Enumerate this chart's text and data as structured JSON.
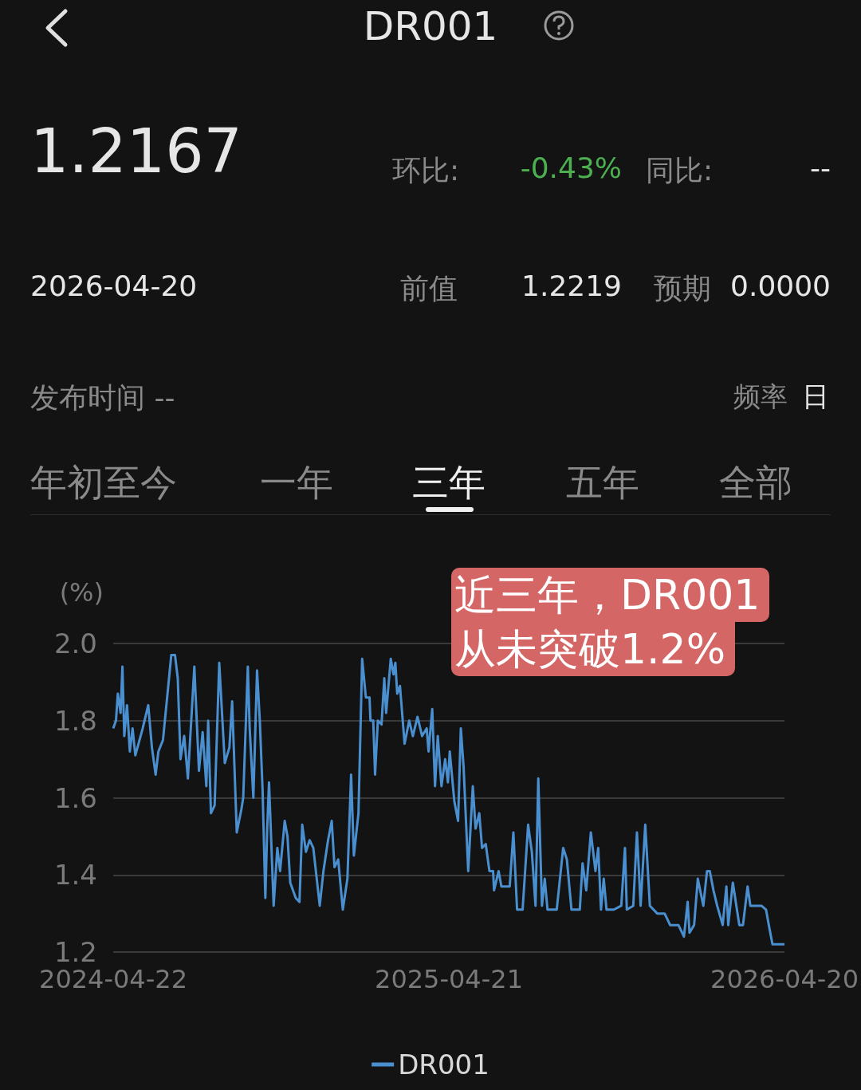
{
  "chart_data": {
    "type": "line",
    "title": "DR001",
    "ylabel": "(%)",
    "annotations": [
      "1.2167",
      "环比:",
      "-0.43%",
      "同比:",
      "--",
      "2026-04-20",
      "前值",
      "1.2219",
      "预期",
      "0.0000",
      "发布时间 --",
      "频率",
      "日",
      "年初至今",
      "一年",
      "三年",
      "五年",
      "全部",
      "近三年，DR001\n从未突破1.2%"
    ],
    "xlim": [
      "2024-04-22",
      "2026-04-20"
    ],
    "xticks": [
      "2024-04-22",
      "2025-04-21",
      "2026-04-20"
    ],
    "ylim": [
      1.2,
      2.0
    ],
    "yticks": [
      {
        "value": 1.2,
        "label": "1.2"
      },
      {
        "value": 1.4,
        "label": "1.4"
      },
      {
        "value": 1.6,
        "label": "1.6"
      },
      {
        "value": 1.8,
        "label": "1.8"
      },
      {
        "value": 2.0,
        "label": "2.0"
      }
    ],
    "grid": "y",
    "legend": "bottom",
    "marker": "none",
    "series": [
      {
        "name": "DR001",
        "color": "#4a8fd0",
        "x": [
          "2024-04-22",
          "2024-04-25",
          "2024-04-27",
          "2024-04-30",
          "2024-05-02",
          "2024-05-04",
          "2024-05-07",
          "2024-05-10",
          "2024-05-13",
          "2024-05-16",
          "2024-05-24",
          "2024-05-30",
          "2024-06-03",
          "2024-06-07",
          "2024-06-10",
          "2024-06-15",
          "2024-06-24",
          "2024-06-28",
          "2024-07-01",
          "2024-07-04",
          "2024-07-08",
          "2024-07-12",
          "2024-07-19",
          "2024-07-24",
          "2024-07-28",
          "2024-08-01",
          "2024-08-03",
          "2024-08-06",
          "2024-08-10",
          "2024-08-15",
          "2024-08-21",
          "2024-08-26",
          "2024-08-29",
          "2024-09-03",
          "2024-09-08",
          "2024-09-10",
          "2024-09-15",
          "2024-09-17",
          "2024-09-21",
          "2024-09-25",
          "2024-09-28",
          "2024-10-01",
          "2024-10-04",
          "2024-10-06",
          "2024-10-08",
          "2024-10-13",
          "2024-10-17",
          "2024-10-20",
          "2024-10-25",
          "2024-10-28",
          "2024-10-31",
          "2024-11-06",
          "2024-11-10",
          "2024-11-13",
          "2024-11-17",
          "2024-11-21",
          "2024-11-25",
          "2024-12-02",
          "2024-12-06",
          "2024-12-11",
          "2024-12-15",
          "2024-12-18",
          "2024-12-22",
          "2024-12-27",
          "2025-01-01",
          "2025-01-05",
          "2025-01-08",
          "2025-01-13",
          "2025-01-17",
          "2025-01-21",
          "2025-01-25",
          "2025-01-26",
          "2025-01-29",
          "2025-01-31",
          "2025-02-03",
          "2025-02-07",
          "2025-02-10",
          "2025-02-12",
          "2025-02-17",
          "2025-02-20",
          "2025-02-22",
          "2025-02-24",
          "2025-02-27",
          "2025-03-04",
          "2025-03-09",
          "2025-03-13",
          "2025-03-18",
          "2025-03-23",
          "2025-03-28",
          "2025-03-30",
          "2025-04-03",
          "2025-04-06",
          "2025-04-09",
          "2025-04-13",
          "2025-04-17",
          "2025-04-20",
          "2025-04-22",
          "2025-04-27",
          "2025-05-01",
          "2025-05-04",
          "2025-05-07",
          "2025-05-12",
          "2025-05-17",
          "2025-05-20",
          "2025-05-24",
          "2025-05-27",
          "2025-05-31",
          "2025-06-04",
          "2025-06-08",
          "2025-06-09",
          "2025-06-14",
          "2025-06-17",
          "2025-06-26",
          "2025-06-30",
          "2025-07-04",
          "2025-07-10",
          "2025-07-16",
          "2025-07-20",
          "2025-07-24",
          "2025-07-27",
          "2025-07-31",
          "2025-08-03",
          "2025-08-06",
          "2025-08-16",
          "2025-08-23",
          "2025-08-27",
          "2025-09-01",
          "2025-09-06",
          "2025-09-10",
          "2025-09-13",
          "2025-09-17",
          "2025-09-22",
          "2025-09-27",
          "2025-09-30",
          "2025-10-03",
          "2025-10-06",
          "2025-10-09",
          "2025-10-17",
          "2025-10-25",
          "2025-10-29",
          "2025-10-31",
          "2025-11-07",
          "2025-11-11",
          "2025-11-15",
          "2025-11-20",
          "2025-11-25",
          "2025-12-03",
          "2025-12-11",
          "2025-12-17",
          "2025-12-26",
          "2026-01-01",
          "2026-01-05",
          "2026-01-07",
          "2026-01-12",
          "2026-01-16",
          "2026-01-22",
          "2026-01-26",
          "2026-01-29",
          "2026-02-02",
          "2026-02-06",
          "2026-02-12",
          "2026-02-16",
          "2026-02-18",
          "2026-02-23",
          "2026-03-02",
          "2026-03-06",
          "2026-03-11",
          "2026-03-14",
          "2026-03-26",
          "2026-03-31",
          "2026-04-03",
          "2026-04-07",
          "2026-04-12",
          "2026-04-20"
        ],
        "values": [
          1.78,
          1.8,
          1.87,
          1.82,
          1.94,
          1.76,
          1.84,
          1.72,
          1.78,
          1.71,
          1.78,
          1.84,
          1.73,
          1.66,
          1.72,
          1.75,
          1.97,
          1.97,
          1.91,
          1.7,
          1.76,
          1.65,
          1.94,
          1.67,
          1.77,
          1.63,
          1.8,
          1.56,
          1.58,
          1.95,
          1.69,
          1.73,
          1.85,
          1.51,
          1.57,
          1.6,
          1.94,
          1.78,
          1.6,
          1.93,
          1.8,
          1.62,
          1.34,
          1.52,
          1.64,
          1.32,
          1.47,
          1.41,
          1.54,
          1.5,
          1.38,
          1.34,
          1.33,
          1.53,
          1.46,
          1.49,
          1.47,
          1.32,
          1.41,
          1.49,
          1.54,
          1.42,
          1.44,
          1.31,
          1.39,
          1.66,
          1.45,
          1.56,
          1.96,
          1.86,
          1.86,
          1.8,
          1.8,
          1.66,
          1.8,
          1.79,
          1.91,
          1.82,
          1.96,
          1.92,
          1.95,
          1.87,
          1.89,
          1.74,
          1.8,
          1.76,
          1.81,
          1.76,
          1.78,
          1.72,
          1.83,
          1.63,
          1.76,
          1.63,
          1.7,
          1.64,
          1.72,
          1.59,
          1.54,
          1.78,
          1.68,
          1.41,
          1.63,
          1.52,
          1.56,
          1.47,
          1.48,
          1.41,
          1.41,
          1.36,
          1.41,
          1.37,
          1.37,
          1.51,
          1.31,
          1.31,
          1.53,
          1.46,
          1.32,
          1.65,
          1.32,
          1.39,
          1.31,
          1.31,
          1.47,
          1.44,
          1.31,
          1.31,
          1.31,
          1.43,
          1.36,
          1.51,
          1.41,
          1.47,
          1.31,
          1.39,
          1.31,
          1.31,
          1.32,
          1.47,
          1.31,
          1.32,
          1.51,
          1.32,
          1.53,
          1.32,
          1.3,
          1.3,
          1.27,
          1.27,
          1.24,
          1.33,
          1.25,
          1.27,
          1.39,
          1.32,
          1.41,
          1.41,
          1.36,
          1.32,
          1.27,
          1.37,
          1.27,
          1.38,
          1.27,
          1.27,
          1.37,
          1.32,
          1.32,
          1.31,
          1.27,
          1.22,
          1.22,
          1.22
        ]
      }
    ]
  }
}
